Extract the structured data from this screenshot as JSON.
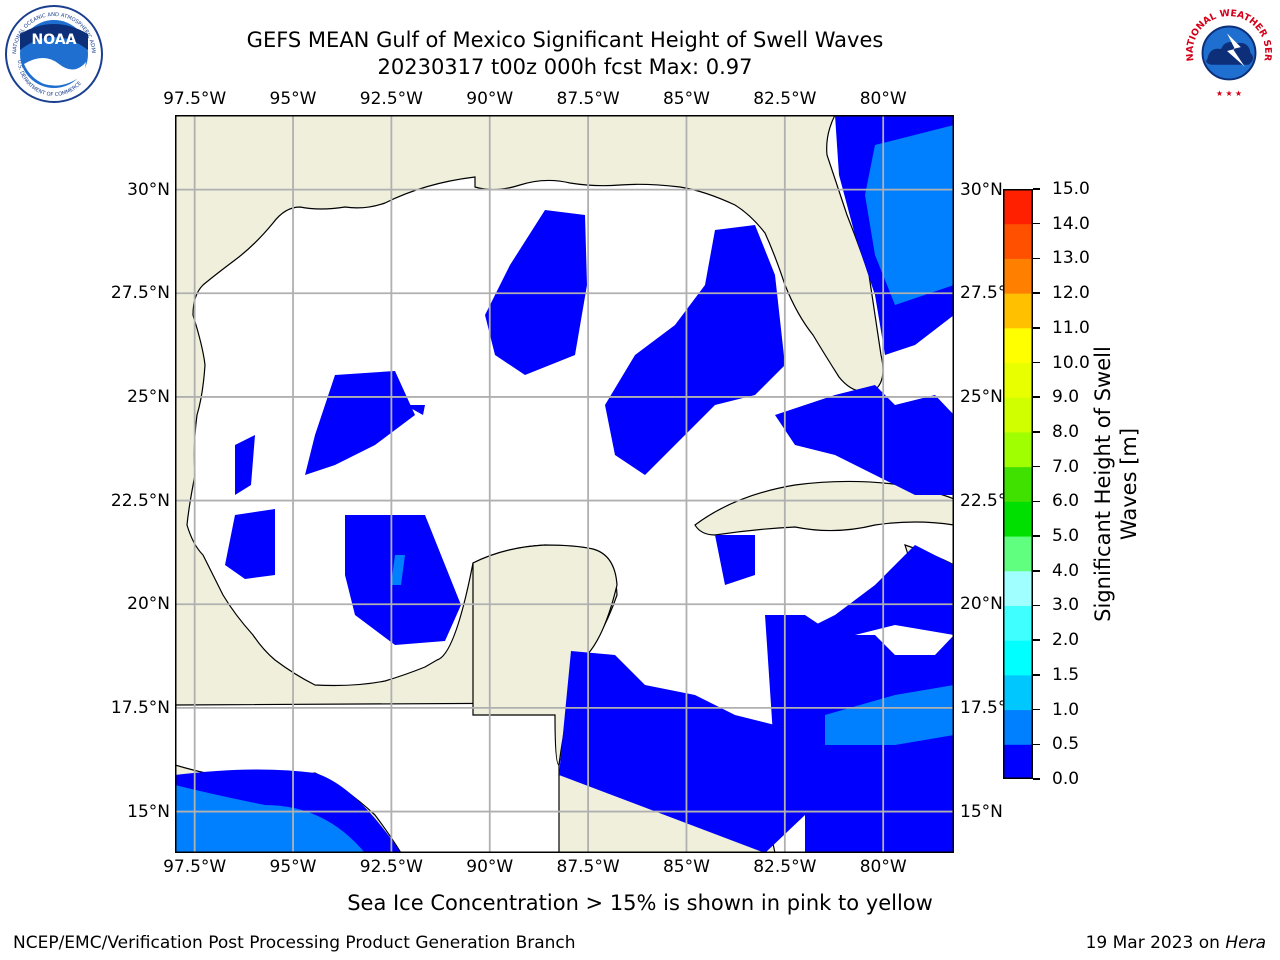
{
  "title": {
    "line1": "GEFS MEAN Gulf of Mexico Significant Height of Swell Waves",
    "line2": "20230317 t00z 000h fcst   Max: 0.97"
  },
  "axes": {
    "lon_ticks": [
      "97.5°W",
      "95°W",
      "92.5°W",
      "90°W",
      "87.5°W",
      "85°W",
      "82.5°W",
      "80°W"
    ],
    "lon_values": [
      -97.5,
      -95,
      -92.5,
      -90,
      -87.5,
      -85,
      -82.5,
      -80
    ],
    "lat_ticks": [
      "30°N",
      "27.5°N",
      "25°N",
      "22.5°N",
      "20°N",
      "17.5°N",
      "15°N"
    ],
    "lat_values": [
      30,
      27.5,
      25,
      22.5,
      20,
      17.5,
      15
    ],
    "lon_range": [
      -98,
      -78.2
    ],
    "lat_range": [
      14,
      31.8
    ],
    "grid": true
  },
  "colorbar": {
    "label_line1": "Significant Height of Swell",
    "label_line2": "Waves [m]",
    "levels": [
      "0.0",
      "0.5",
      "1.0",
      "1.5",
      "2.0",
      "3.0",
      "4.0",
      "5.0",
      "6.0",
      "7.0",
      "8.0",
      "9.0",
      "10.0",
      "11.0",
      "12.0",
      "13.0",
      "14.0",
      "15.0"
    ],
    "colors": [
      "#0000ff",
      "#0080ff",
      "#00c8ff",
      "#00ffff",
      "#40ffff",
      "#a0ffff",
      "#60ff80",
      "#00e000",
      "#40e000",
      "#a0ff00",
      "#d0ff00",
      "#e8ff00",
      "#ffff00",
      "#ffc000",
      "#ff8000",
      "#ff5000",
      "#ff2000",
      "#ff0000"
    ]
  },
  "colors": {
    "land": "#efefdc",
    "swell_0_05": "#0000ff",
    "swell_05_10": "#0080ff",
    "grid": "#b0b0b0"
  },
  "note": "Sea Ice Concentration > 15% is shown in pink to yellow",
  "footer": {
    "left": "NCEP/EMC/Verification Post Processing Product Generation Branch",
    "right_date": "19 Mar 2023 on ",
    "right_host": "Hera"
  },
  "logos": {
    "noaa_text": "NOAA",
    "noaa_ring_top": "NATIONAL OCEANIC AND ATMOSPHERIC ADMINISTRATION",
    "noaa_ring_bottom": "U.S. DEPARTMENT OF COMMERCE",
    "nws_ring": "NATIONAL WEATHER SERVICE"
  }
}
